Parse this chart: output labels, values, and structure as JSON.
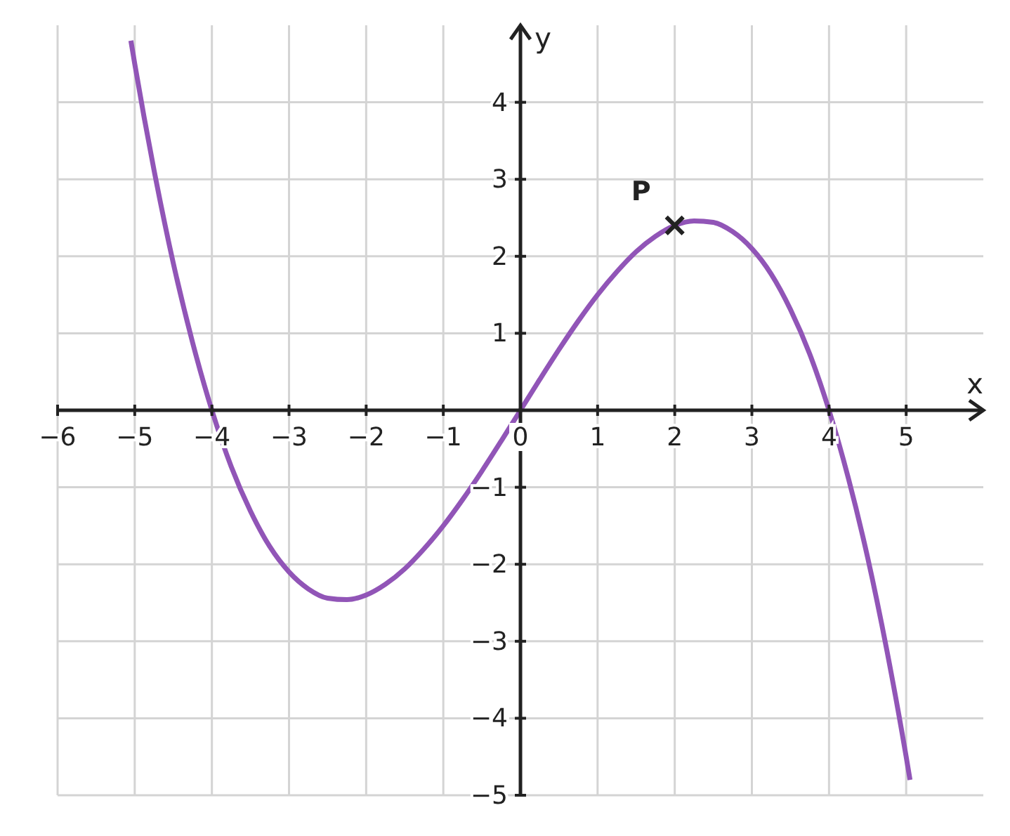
{
  "chart_data": {
    "type": "line",
    "xlabel": "x",
    "ylabel": "y",
    "xlim": [
      -6,
      6
    ],
    "ylim": [
      -5,
      5
    ],
    "xticks": [
      -6,
      -5,
      -4,
      -3,
      -2,
      -1,
      0,
      1,
      2,
      3,
      4,
      5
    ],
    "yticks": [
      -5,
      -4,
      -3,
      -2,
      -1,
      1,
      2,
      3,
      4
    ],
    "grid": true,
    "series": [
      {
        "type": "line",
        "color": "#9155b7",
        "marker": "none",
        "line_style": "solid",
        "x": [
          -5.05,
          -5,
          -4.75,
          -4.5,
          -4.25,
          -4,
          -3.75,
          -3.5,
          -3.25,
          -3,
          -2.75,
          -2.5,
          -2.25,
          -2,
          -1.75,
          -1.5,
          -1.25,
          -1,
          -0.75,
          -0.5,
          -0.25,
          0,
          0.25,
          0.5,
          0.75,
          1,
          1.25,
          1.5,
          1.75,
          2,
          2.25,
          2.5,
          2.75,
          3,
          3.25,
          3.5,
          3.75,
          4,
          4.25,
          4.5,
          4.75,
          5,
          5.05
        ],
        "values": [
          4.8,
          4.5,
          3.12,
          1.91,
          0.88,
          0,
          -0.73,
          -1.31,
          -1.77,
          -2.1,
          -2.32,
          -2.44,
          -2.46,
          -2.4,
          -2.26,
          -2.06,
          -1.8,
          -1.5,
          -1.16,
          -0.79,
          -0.4,
          0,
          0.4,
          0.79,
          1.16,
          1.5,
          1.8,
          2.06,
          2.26,
          2.4,
          2.46,
          2.44,
          2.32,
          2.1,
          1.77,
          1.31,
          0.73,
          0,
          -0.88,
          -1.91,
          -3.12,
          -4.5,
          -4.8
        ]
      },
      {
        "type": "scatter",
        "color": "#222222",
        "marker": "cross",
        "x": [
          2
        ],
        "values": [
          2.4
        ]
      }
    ],
    "annotations": [
      {
        "text": "P",
        "x": 2,
        "y": 2.4
      }
    ]
  }
}
